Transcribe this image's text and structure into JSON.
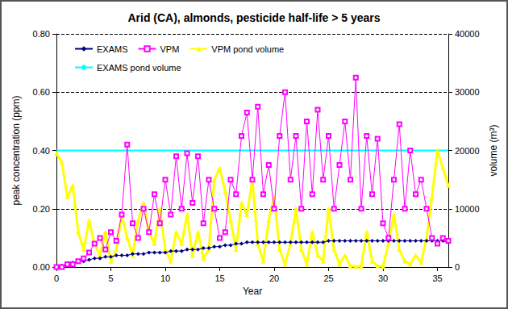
{
  "chart_data": {
    "type": "line",
    "title": "Arid (CA), almonds, pesticide half-life > 5 years",
    "x_label": "Year",
    "y_label": "peak concentration (ppm)",
    "y2_label": "volume (m³)",
    "x": [
      0,
      0.5,
      1,
      1.5,
      2,
      2.5,
      3,
      3.5,
      4,
      4.5,
      5,
      5.5,
      6,
      6.5,
      7,
      7.5,
      8,
      8.5,
      9,
      9.5,
      10,
      10.5,
      11,
      11.5,
      12,
      12.5,
      13,
      13.5,
      14,
      14.5,
      15,
      15.5,
      16,
      16.5,
      17,
      17.5,
      18,
      18.5,
      19,
      19.5,
      20,
      20.5,
      21,
      21.5,
      22,
      22.5,
      23,
      23.5,
      24,
      24.5,
      25,
      25.5,
      26,
      26.5,
      27,
      27.5,
      28,
      28.5,
      29,
      29.5,
      30,
      30.5,
      31,
      31.5,
      32,
      32.5,
      33,
      33.5,
      34,
      34.5,
      35,
      35.5,
      36
    ],
    "xlim": [
      0,
      36
    ],
    "xticks": [
      0,
      5,
      10,
      15,
      20,
      25,
      30,
      35
    ],
    "ylim": [
      0,
      0.8
    ],
    "yticks": [
      {
        "value": 0,
        "label": "0.00"
      },
      {
        "value": 0.2,
        "label": "0.20"
      },
      {
        "value": 0.4,
        "label": "0.40"
      },
      {
        "value": 0.6,
        "label": "0.60"
      },
      {
        "value": 0.8,
        "label": "0.80"
      }
    ],
    "y2lim": [
      0,
      40000
    ],
    "y2ticks": [
      0,
      10000,
      20000,
      30000,
      40000
    ],
    "grid": true,
    "legend": "upper left",
    "series": [
      {
        "name": "EXAMS",
        "color": "#000080",
        "marker": "diamond",
        "line_style": "solid",
        "values": [
          0,
          0.005,
          0.01,
          0.015,
          0.02,
          0.02,
          0.025,
          0.03,
          0.03,
          0.035,
          0.035,
          0.04,
          0.04,
          0.04,
          0.045,
          0.045,
          0.045,
          0.05,
          0.05,
          0.05,
          0.05,
          0.055,
          0.055,
          0.055,
          0.06,
          0.06,
          0.06,
          0.065,
          0.065,
          0.07,
          0.07,
          0.075,
          0.075,
          0.08,
          0.08,
          0.085,
          0.085,
          0.085,
          0.085,
          0.085,
          0.085,
          0.085,
          0.085,
          0.085,
          0.085,
          0.085,
          0.085,
          0.085,
          0.085,
          0.085,
          0.09,
          0.09,
          0.09,
          0.09,
          0.09,
          0.09,
          0.09,
          0.09,
          0.09,
          0.09,
          0.09,
          0.09,
          0.09,
          0.09,
          0.09,
          0.09,
          0.09,
          0.09,
          0.09,
          0.09,
          0.09,
          0.09,
          0.085
        ]
      },
      {
        "name": "VPM",
        "color": "#ff00ff",
        "marker": "square",
        "line_style": "solid",
        "values": [
          0,
          0,
          0.01,
          0.01,
          0.02,
          0.03,
          0.05,
          0.08,
          0.1,
          0.06,
          0.12,
          0.09,
          0.18,
          0.42,
          0.15,
          0.1,
          0.2,
          0.12,
          0.25,
          0.15,
          0.3,
          0.18,
          0.38,
          0.2,
          0.39,
          0.22,
          0.38,
          0.15,
          0.3,
          0.2,
          0.1,
          0.12,
          0.3,
          0.25,
          0.45,
          0.53,
          0.3,
          0.55,
          0.25,
          0.35,
          0.2,
          0.45,
          0.6,
          0.3,
          0.45,
          0.2,
          0.5,
          0.25,
          0.54,
          0.3,
          0.45,
          0.2,
          0.35,
          0.5,
          0.3,
          0.65,
          0.2,
          0.45,
          0.25,
          0.44,
          0.15,
          0.1,
          0.3,
          0.49,
          0.2,
          0.4,
          0.25,
          0.3,
          0.2,
          0.1,
          0.08,
          0.1,
          0.09
        ]
      },
      {
        "name": "VPM pond volume",
        "color": "#ffff00",
        "marker": "triangle",
        "line_style": "solid",
        "axis": "y2",
        "values": [
          19500,
          18000,
          12000,
          14000,
          6000,
          3000,
          8000,
          4000,
          2000,
          6000,
          1000,
          3000,
          9000,
          5000,
          2000,
          8000,
          11000,
          6000,
          4000,
          10000,
          3000,
          1000,
          6000,
          4000,
          9000,
          2000,
          6000,
          1500,
          3000,
          15000,
          17000,
          13000,
          8000,
          3000,
          11000,
          9000,
          15000,
          4000,
          1000,
          8000,
          12000,
          3000,
          500,
          4000,
          10000,
          3000,
          500,
          6000,
          2000,
          1000,
          10000,
          3000,
          500,
          2000,
          200,
          100,
          100,
          6000,
          1000,
          200,
          100,
          4000,
          9000,
          3000,
          1000,
          500,
          2000,
          800,
          5000,
          12000,
          20000,
          17000,
          14000
        ]
      },
      {
        "name": "EXAMS pond volume",
        "color": "#00ffff",
        "marker": "none",
        "line_style": "solid",
        "axis": "y2",
        "x": [
          0,
          36
        ],
        "values": [
          20000,
          20000
        ]
      }
    ]
  }
}
